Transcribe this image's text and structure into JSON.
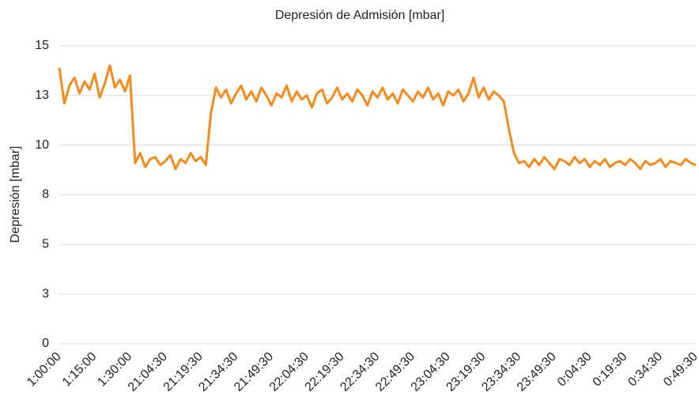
{
  "chart_data": {
    "type": "line",
    "title": "Depresión de Admisión [mbar]",
    "y_label": "Depresión [mbar]",
    "categories": [
      "1:00:00",
      null,
      null,
      null,
      null,
      null,
      null,
      "1:15:00",
      null,
      null,
      null,
      null,
      null,
      null,
      "1:30:00",
      null,
      null,
      null,
      null,
      null,
      null,
      "21:04:30",
      null,
      null,
      null,
      null,
      null,
      null,
      "21:19:30",
      null,
      null,
      null,
      null,
      null,
      null,
      "21:34:30",
      null,
      null,
      null,
      null,
      null,
      null,
      "21:49:30",
      null,
      null,
      null,
      null,
      null,
      null,
      "22:04:30",
      null,
      null,
      null,
      null,
      null,
      null,
      "22:19:30",
      null,
      null,
      null,
      null,
      null,
      null,
      "22:34:30",
      null,
      null,
      null,
      null,
      null,
      null,
      "22:49:30",
      null,
      null,
      null,
      null,
      null,
      null,
      "23:04:30",
      null,
      null,
      null,
      null,
      null,
      null,
      "23:19:30",
      null,
      null,
      null,
      null,
      null,
      null,
      "23:34:30",
      null,
      null,
      null,
      null,
      null,
      null,
      "23:49:30",
      null,
      null,
      null,
      null,
      null,
      null,
      "0:04:30",
      null,
      null,
      null,
      null,
      null,
      null,
      "0:19:30",
      null,
      null,
      null,
      null,
      null,
      null,
      "0:34:30",
      null,
      null,
      null,
      null,
      null,
      null,
      "0:49:30"
    ],
    "series": [
      {
        "color": "#f28c1e",
        "values": [
          13.9,
          12.1,
          13.0,
          13.4,
          12.6,
          13.2,
          12.8,
          13.6,
          12.4,
          13.1,
          14.0,
          12.9,
          13.3,
          12.7,
          13.5,
          9.1,
          9.6,
          8.9,
          9.3,
          9.4,
          9.0,
          9.2,
          9.5,
          8.8,
          9.3,
          9.1,
          9.6,
          9.2,
          9.4,
          9.0,
          11.6,
          12.9,
          12.4,
          12.8,
          12.1,
          12.6,
          13.0,
          12.3,
          12.7,
          12.2,
          12.9,
          12.5,
          12.0,
          12.6,
          12.4,
          13.0,
          12.2,
          12.7,
          12.3,
          12.5,
          11.9,
          12.6,
          12.8,
          12.1,
          12.4,
          12.9,
          12.3,
          12.6,
          12.2,
          12.8,
          12.5,
          12.0,
          12.7,
          12.4,
          12.9,
          12.3,
          12.6,
          12.1,
          12.8,
          12.5,
          12.2,
          12.7,
          12.4,
          12.9,
          12.3,
          12.6,
          12.0,
          12.7,
          12.5,
          12.8,
          12.2,
          12.6,
          13.4,
          12.4,
          12.9,
          12.3,
          12.7,
          12.5,
          12.2,
          10.8,
          9.6,
          9.1,
          9.2,
          8.9,
          9.3,
          9.0,
          9.4,
          9.1,
          8.8,
          9.3,
          9.2,
          9.0,
          9.4,
          9.1,
          9.3,
          8.9,
          9.2,
          9.0,
          9.3,
          8.9,
          9.1,
          9.2,
          9.0,
          9.3,
          9.1,
          8.8,
          9.2,
          9.0,
          9.1,
          9.3,
          8.9,
          9.2,
          9.1,
          9.0,
          9.3,
          9.1,
          9.0
        ]
      }
    ],
    "ylim": [
      0,
      15
    ],
    "yticks": [
      0,
      {
        "value": 2.5,
        "label": "3"
      },
      5,
      {
        "value": 7.5,
        "label": "8"
      },
      10,
      {
        "value": 12.5,
        "label": "13"
      },
      15
    ],
    "grid": true
  }
}
